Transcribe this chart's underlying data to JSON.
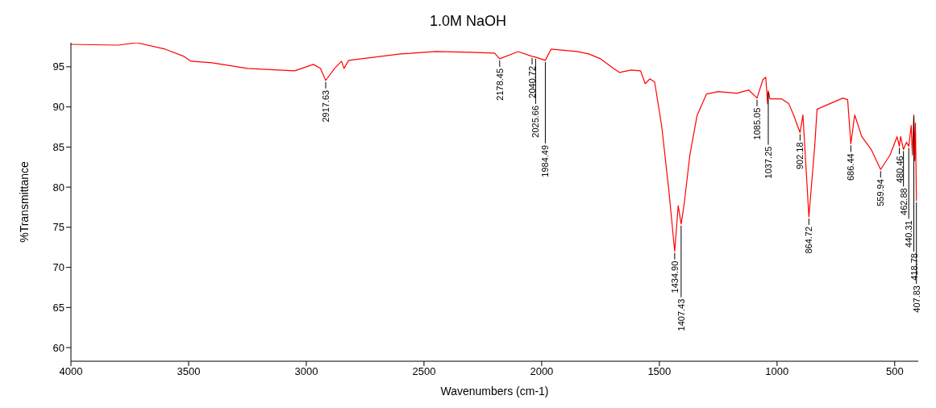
{
  "chart_data": {
    "type": "line",
    "title": "1.0M NaOH",
    "xlabel": "Wavenumbers (cm-1)",
    "ylabel": "%Transmittance",
    "marker": "none",
    "xlim": [
      4000,
      400
    ],
    "ylim": [
      58.3,
      98
    ],
    "xticks": [
      4000,
      3500,
      3000,
      2500,
      2000,
      1500,
      1000,
      500
    ],
    "yticks": [
      60,
      65,
      70,
      75,
      80,
      85,
      90,
      95
    ],
    "x": [
      4000,
      3800,
      3720,
      3600,
      3520,
      3490,
      3400,
      3250,
      3050,
      2970,
      2940,
      2917.63,
      2880,
      2850,
      2840,
      2820,
      2600,
      2450,
      2300,
      2200,
      2178.45,
      2100,
      2040.72,
      2025.66,
      1984.49,
      1960,
      1850,
      1800,
      1750,
      1700,
      1670,
      1620,
      1580,
      1560,
      1540,
      1520,
      1490,
      1460,
      1434.9,
      1420,
      1407.43,
      1395,
      1370,
      1340,
      1300,
      1250,
      1170,
      1120,
      1085.05,
      1060,
      1048,
      1040,
      1037.25,
      1030,
      980,
      950,
      930,
      902.18,
      890,
      864.72,
      840,
      830,
      800,
      720,
      700,
      686.44,
      670,
      640,
      600,
      559.94,
      520,
      490,
      480.46,
      475,
      462.88,
      450,
      440.31,
      430,
      425,
      418.78,
      415,
      412,
      407.83
    ],
    "series": [
      {
        "color": "#ff0000",
        "values": [
          97.8,
          97.7,
          98.0,
          97.2,
          96.3,
          95.7,
          95.5,
          94.8,
          94.5,
          95.3,
          94.8,
          93.3,
          94.8,
          95.7,
          94.8,
          95.8,
          96.6,
          96.9,
          96.8,
          96.7,
          96.0,
          96.9,
          96.3,
          96.2,
          95.8,
          97.2,
          96.9,
          96.6,
          96.0,
          94.9,
          94.3,
          94.6,
          94.5,
          92.9,
          93.5,
          93.1,
          87.6,
          79.7,
          72.0,
          77.7,
          75.4,
          77.8,
          84.1,
          88.9,
          91.6,
          91.9,
          91.7,
          92.1,
          91.1,
          93.4,
          93.7,
          90.4,
          92.0,
          91.0,
          91.0,
          90.4,
          89.0,
          86.8,
          89.0,
          76.3,
          85.1,
          89.7,
          90.1,
          91.1,
          90.9,
          85.4,
          89.0,
          86.3,
          84.7,
          82.2,
          84.0,
          86.3,
          85.1,
          86.3,
          84.7,
          85.6,
          85.1,
          87.7,
          84.0,
          89.0,
          83.3,
          88.0,
          78.3
        ]
      }
    ],
    "annotations": [
      {
        "text": "2917.63",
        "x": 2917.63,
        "y": 93.3
      },
      {
        "text": "2178.45",
        "x": 2178.45,
        "y": 96.0
      },
      {
        "text": "2040.72",
        "x": 2040.72,
        "y": 96.3
      },
      {
        "text": "2025.66",
        "x": 2025.66,
        "y": 96.2
      },
      {
        "text": "1984.49",
        "x": 1984.49,
        "y": 95.8
      },
      {
        "text": "1434.90",
        "x": 1434.9,
        "y": 72.0
      },
      {
        "text": "1407.43",
        "x": 1407.43,
        "y": 75.4
      },
      {
        "text": "1085.05",
        "x": 1085.05,
        "y": 91.1
      },
      {
        "text": "1037.25",
        "x": 1037.25,
        "y": 92.0
      },
      {
        "text": "902.18",
        "x": 902.18,
        "y": 86.8
      },
      {
        "text": "864.72",
        "x": 864.72,
        "y": 76.3
      },
      {
        "text": "686.44",
        "x": 686.44,
        "y": 85.4
      },
      {
        "text": "559.94",
        "x": 559.94,
        "y": 82.2
      },
      {
        "text": "480.46",
        "x": 480.46,
        "y": 85.1
      },
      {
        "text": "462.88",
        "x": 462.88,
        "y": 84.7
      },
      {
        "text": "440.31",
        "x": 440.31,
        "y": 85.1
      },
      {
        "text": "418.78",
        "x": 418.78,
        "y": 89.0
      },
      {
        "text": "407.83",
        "x": 407.83,
        "y": 78.3
      }
    ]
  }
}
